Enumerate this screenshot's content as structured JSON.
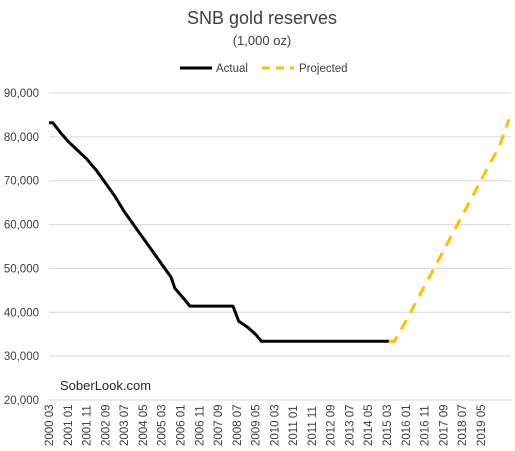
{
  "chart_data": {
    "type": "line",
    "title": "SNB gold reserves",
    "subtitle": "(1,000 oz)",
    "xlabel": "",
    "ylabel": "",
    "ylim": [
      20000,
      90000
    ],
    "yticks": [
      "20,000",
      "30,000",
      "40,000",
      "50,000",
      "60,000",
      "70,000",
      "80,000",
      "90,000"
    ],
    "x_tick_labels": [
      "2000 03",
      "2001 01",
      "2001 11",
      "2002 09",
      "2003 07",
      "2004 05",
      "2005 03",
      "2006 01",
      "2006 11",
      "2007 09",
      "2008 07",
      "2009 05",
      "2010 03",
      "2011 01",
      "2011 11",
      "2012 09",
      "2013 07",
      "2014 05",
      "2015 03",
      "2016 01",
      "2016 11",
      "2017 09",
      "2018 07",
      "2019 05"
    ],
    "grid": "horizontal",
    "legend_position": "top",
    "series": [
      {
        "name": "Actual",
        "color": "#000000",
        "style": "solid",
        "points": [
          [
            "2000-03",
            83200
          ],
          [
            "2000-05",
            83200
          ],
          [
            "2000-09",
            81000
          ],
          [
            "2001-01",
            79000
          ],
          [
            "2001-06",
            77000
          ],
          [
            "2001-11",
            75000
          ],
          [
            "2002-04",
            72500
          ],
          [
            "2002-09",
            69500
          ],
          [
            "2003-02",
            66500
          ],
          [
            "2003-07",
            63000
          ],
          [
            "2003-12",
            60000
          ],
          [
            "2004-05",
            57000
          ],
          [
            "2004-10",
            54000
          ],
          [
            "2005-03",
            51000
          ],
          [
            "2005-08",
            48000
          ],
          [
            "2005-10",
            45500
          ],
          [
            "2006-03",
            43000
          ],
          [
            "2006-06",
            41400
          ],
          [
            "2007-01",
            41400
          ],
          [
            "2008-01",
            41400
          ],
          [
            "2008-05",
            41400
          ],
          [
            "2008-08",
            38000
          ],
          [
            "2009-01",
            36500
          ],
          [
            "2009-05",
            35000
          ],
          [
            "2009-08",
            33400
          ],
          [
            "2015-04",
            33400
          ]
        ]
      },
      {
        "name": "Projected",
        "color": "#FFC000",
        "style": "dashed",
        "points": [
          [
            "2015-04",
            33400
          ],
          [
            "2015-07",
            33400
          ],
          [
            "2016-01",
            38000
          ],
          [
            "2016-11",
            46000
          ],
          [
            "2017-09",
            54000
          ],
          [
            "2018-07",
            62000
          ],
          [
            "2019-05",
            70000
          ],
          [
            "2020-03",
            78000
          ],
          [
            "2020-08",
            84000
          ]
        ]
      }
    ]
  },
  "watermark": "SoberLook.com"
}
